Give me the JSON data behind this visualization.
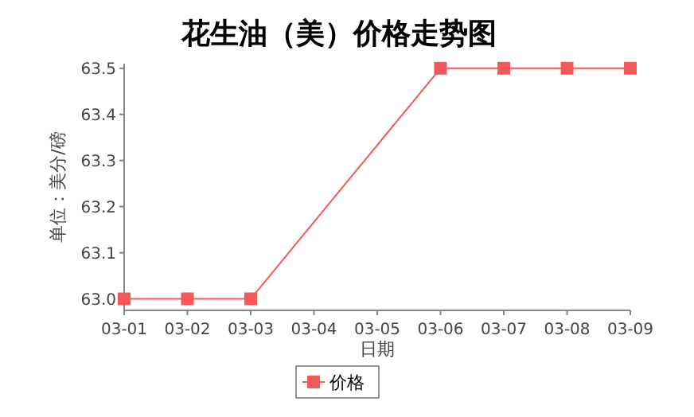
{
  "chart_data": {
    "type": "line",
    "title": "花生油（美）价格走势图",
    "xlabel": "日期",
    "ylabel": "单位：美分/磅",
    "x": [
      "--03-01",
      "--03-02",
      "--03-03",
      "--03-06",
      "--03-07",
      "--03-08",
      "--03-09"
    ],
    "series": [
      {
        "name": "价格",
        "color": "#f25a5a",
        "values": [
          63.0,
          63.0,
          63.0,
          63.5,
          63.5,
          63.5,
          63.5
        ]
      }
    ],
    "xlim": [
      "--03-01",
      "--03-09"
    ],
    "xticks": [
      {
        "value": "--03-01",
        "label": "03-01"
      },
      {
        "value": "--03-02",
        "label": "03-02"
      },
      {
        "value": "--03-03",
        "label": "03-03"
      },
      {
        "value": "--03-04",
        "label": "03-04"
      },
      {
        "value": "--03-05",
        "label": "03-05"
      },
      {
        "value": "--03-06",
        "label": "03-06"
      },
      {
        "value": "--03-07",
        "label": "03-07"
      },
      {
        "value": "--03-08",
        "label": "03-08"
      },
      {
        "value": "--03-09",
        "label": "03-09"
      }
    ],
    "ylim": [
      62.975,
      63.51
    ],
    "yticks": [
      {
        "value": 63.0,
        "label": "63.0"
      },
      {
        "value": 63.1,
        "label": "63.1"
      },
      {
        "value": 63.2,
        "label": "63.2"
      },
      {
        "value": 63.3,
        "label": "63.3"
      },
      {
        "value": 63.4,
        "label": "63.4"
      },
      {
        "value": 63.5,
        "label": "63.5"
      }
    ],
    "grid": false,
    "legend": "bottom",
    "marker": "square",
    "line_style": "solid"
  }
}
